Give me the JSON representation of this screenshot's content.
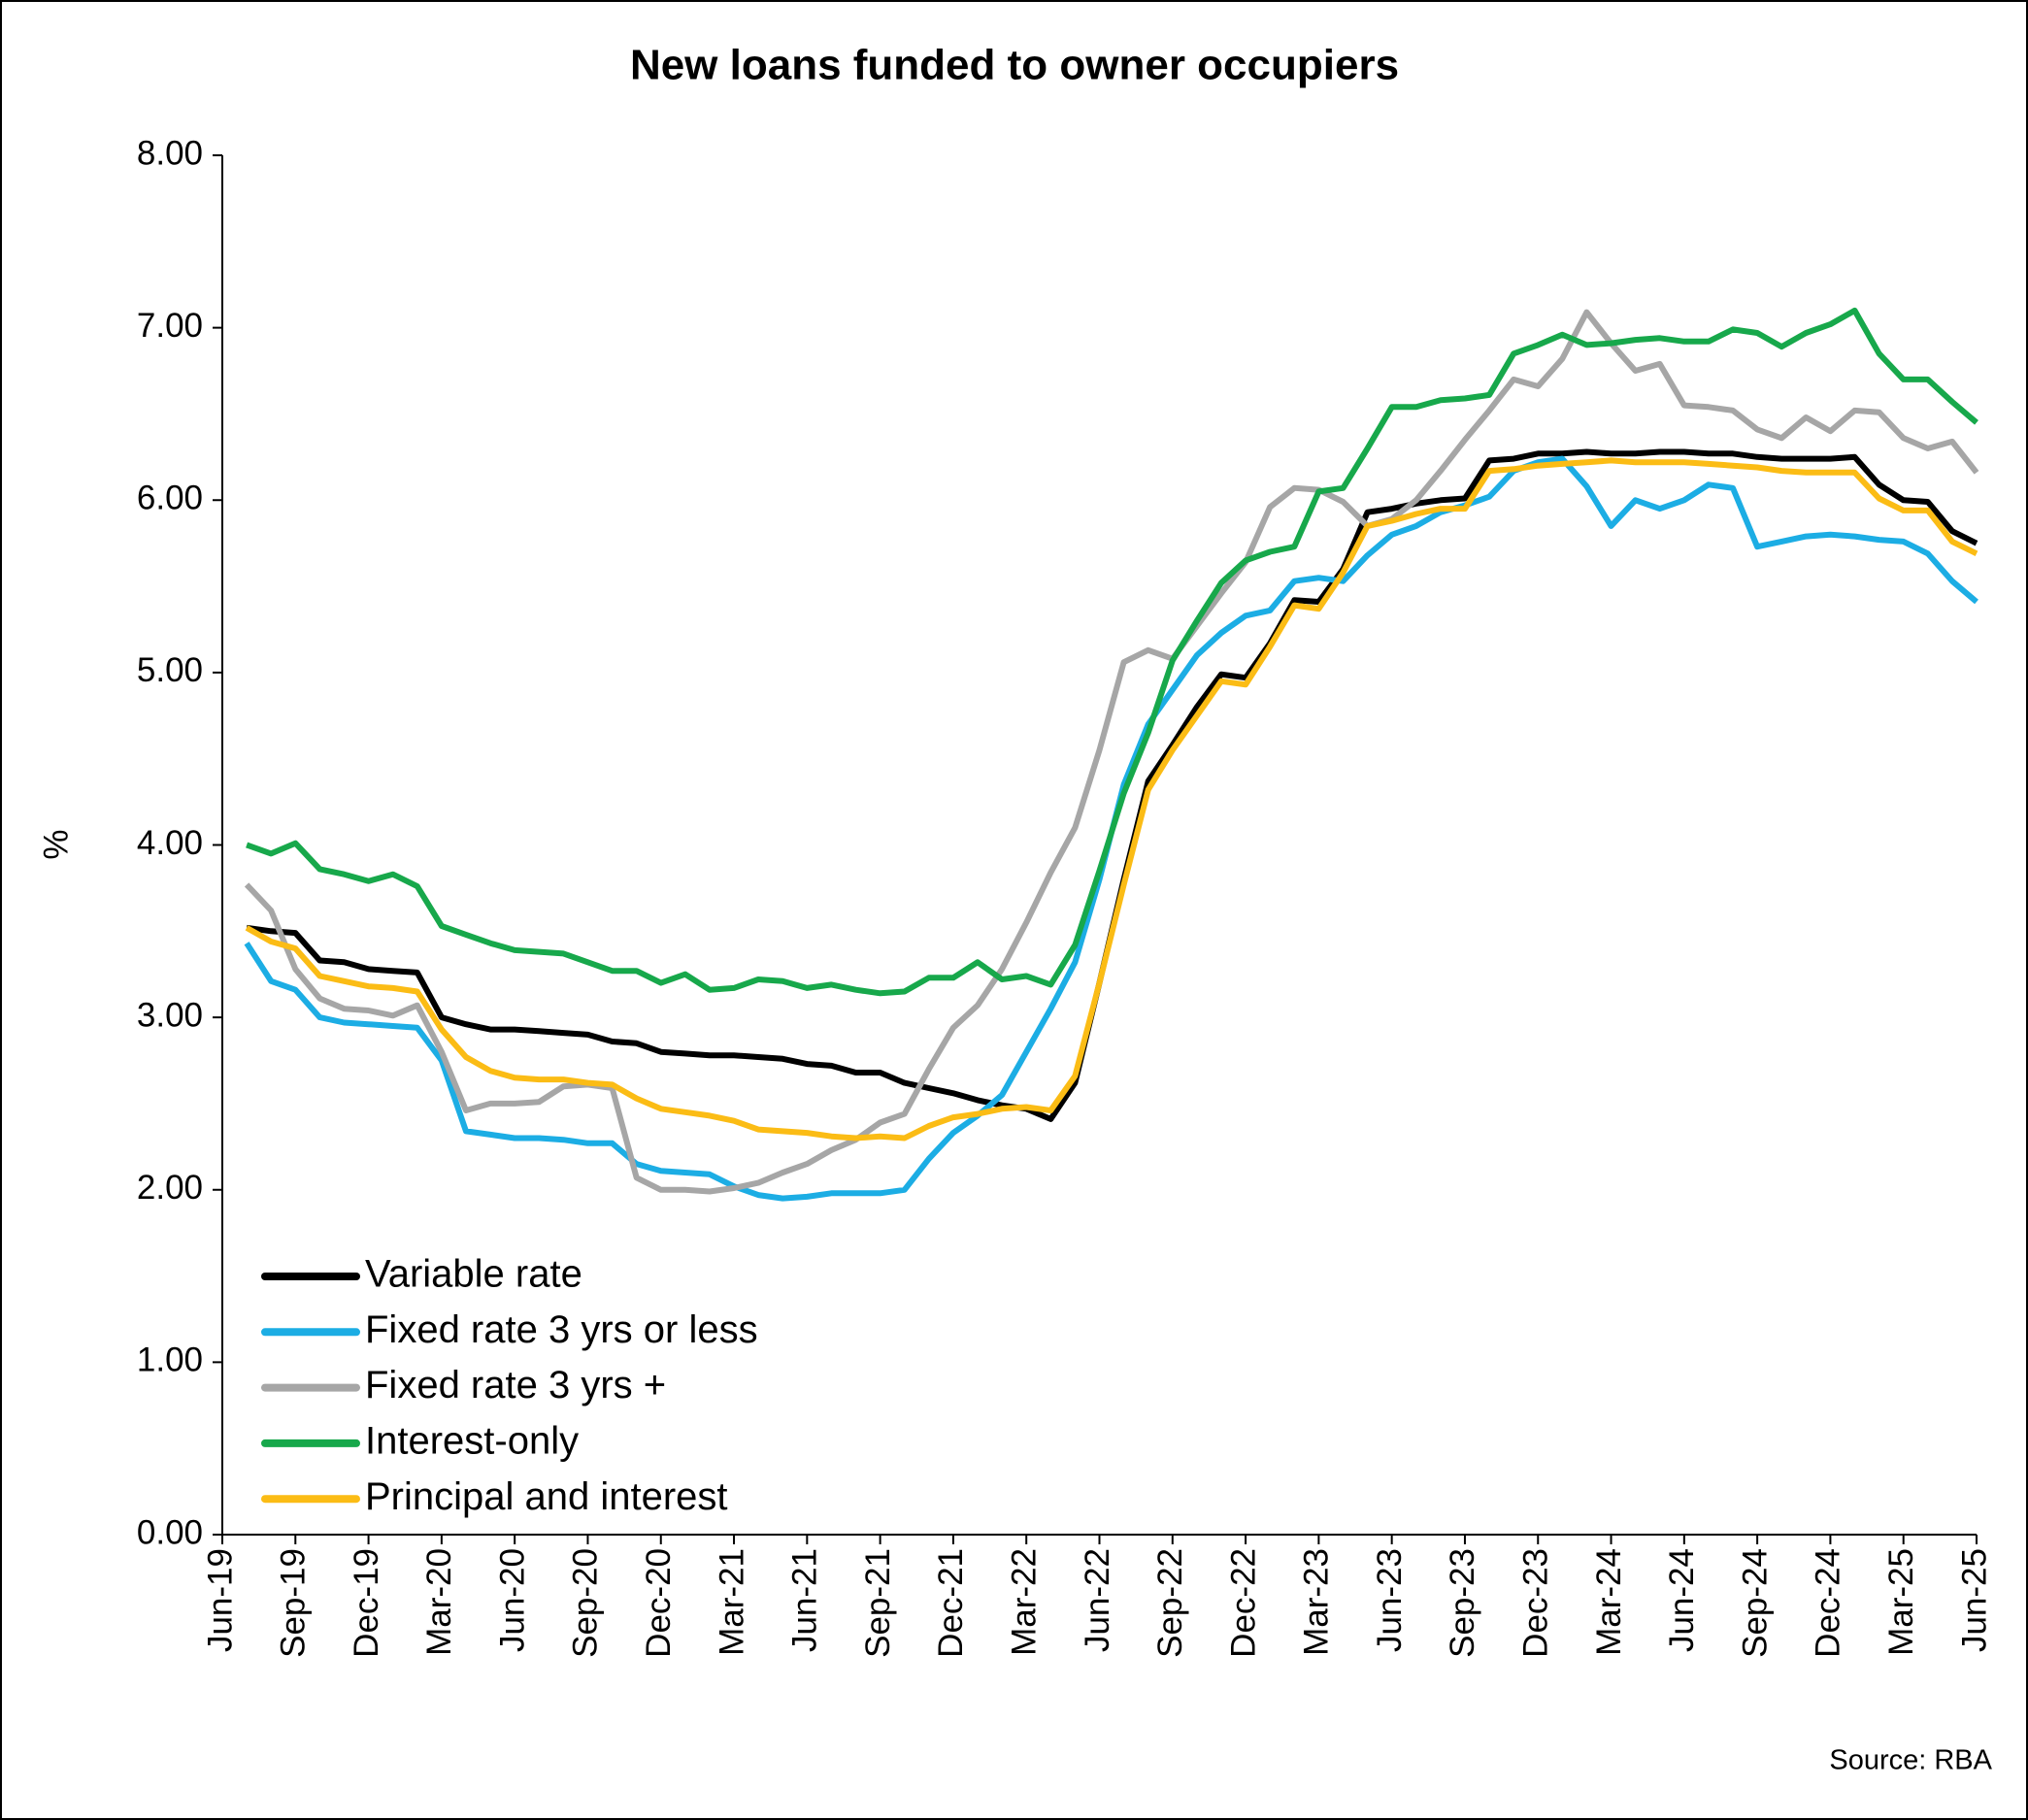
{
  "chart_data": {
    "type": "line",
    "title": "New loans funded to owner occupiers",
    "ylabel": "%",
    "source": "Source: RBA",
    "categories": [
      "Jun-19",
      null,
      null,
      "Sep-19",
      null,
      null,
      "Dec-19",
      null,
      null,
      "Mar-20",
      null,
      null,
      "Jun-20",
      null,
      null,
      "Sep-20",
      null,
      null,
      "Dec-20",
      null,
      null,
      "Mar-21",
      null,
      null,
      "Jun-21",
      null,
      null,
      "Sep-21",
      null,
      null,
      "Dec-21",
      null,
      null,
      "Mar-22",
      null,
      null,
      "Jun-22",
      null,
      null,
      "Sep-22",
      null,
      null,
      "Dec-22",
      null,
      null,
      "Mar-23",
      null,
      null,
      "Jun-23",
      null,
      null,
      "Sep-23",
      null,
      null,
      "Dec-23",
      null,
      null,
      "Mar-24",
      null,
      null,
      "Jun-24",
      null,
      null,
      "Sep-24",
      null,
      null,
      "Dec-24",
      null,
      null,
      "Mar-25",
      null,
      null,
      "Jun-25"
    ],
    "series": [
      {
        "name": "Variable rate",
        "color": "#000000",
        "values": [
          null,
          3.52,
          3.5,
          3.49,
          3.33,
          3.32,
          3.28,
          3.27,
          3.26,
          3.0,
          2.96,
          2.93,
          2.93,
          2.92,
          2.91,
          2.9,
          2.86,
          2.85,
          2.8,
          2.79,
          2.78,
          2.78,
          2.77,
          2.76,
          2.73,
          2.72,
          2.68,
          2.68,
          2.62,
          2.59,
          2.56,
          2.52,
          2.49,
          2.47,
          2.41,
          2.62,
          3.2,
          3.8,
          4.37,
          4.58,
          4.8,
          4.99,
          4.97,
          5.17,
          5.42,
          5.41,
          5.6,
          5.93,
          5.95,
          5.98,
          6.0,
          6.01,
          6.23,
          6.24,
          6.27,
          6.27,
          6.28,
          6.27,
          6.27,
          6.28,
          6.28,
          6.27,
          6.27,
          6.25,
          6.24,
          6.24,
          6.24,
          6.25,
          6.09,
          6.0,
          5.99,
          5.82,
          5.75
        ]
      },
      {
        "name": "Fixed rate 3 yrs or less",
        "color": "#1cade4",
        "values": [
          null,
          3.43,
          3.21,
          3.16,
          3.0,
          2.97,
          2.96,
          2.95,
          2.94,
          2.75,
          2.34,
          2.32,
          2.3,
          2.3,
          2.29,
          2.27,
          2.27,
          2.15,
          2.11,
          2.1,
          2.09,
          2.02,
          1.97,
          1.95,
          1.96,
          1.98,
          1.98,
          1.98,
          2.0,
          2.18,
          2.33,
          2.43,
          2.55,
          2.8,
          3.05,
          3.32,
          3.8,
          4.35,
          4.7,
          4.9,
          5.1,
          5.23,
          5.33,
          5.36,
          5.53,
          5.55,
          5.53,
          5.68,
          5.8,
          5.85,
          5.93,
          5.97,
          6.02,
          6.17,
          6.22,
          6.24,
          6.08,
          5.85,
          6.0,
          5.95,
          6.0,
          6.09,
          6.07,
          5.73,
          5.76,
          5.79,
          5.8,
          5.79,
          5.77,
          5.76,
          5.69,
          5.53,
          5.41
        ]
      },
      {
        "name": "Fixed rate 3 yrs +",
        "color": "#a6a6a6",
        "values": [
          null,
          3.77,
          3.62,
          3.28,
          3.11,
          3.05,
          3.04,
          3.01,
          3.07,
          2.8,
          2.46,
          2.5,
          2.5,
          2.51,
          2.6,
          2.61,
          2.59,
          2.07,
          2.0,
          2.0,
          1.99,
          2.01,
          2.04,
          2.1,
          2.15,
          2.23,
          2.29,
          2.39,
          2.44,
          2.7,
          2.94,
          3.07,
          3.28,
          3.55,
          3.84,
          4.1,
          4.55,
          5.06,
          5.13,
          5.08,
          5.27,
          5.46,
          5.64,
          5.96,
          6.07,
          6.06,
          5.99,
          5.85,
          5.89,
          6.0,
          6.17,
          6.35,
          6.52,
          6.7,
          6.66,
          6.82,
          7.09,
          6.91,
          6.75,
          6.79,
          6.55,
          6.54,
          6.52,
          6.41,
          6.36,
          6.48,
          6.4,
          6.52,
          6.51,
          6.36,
          6.3,
          6.34,
          6.16
        ]
      },
      {
        "name": "Interest-only",
        "color": "#17a84b",
        "values": [
          null,
          4.0,
          3.95,
          4.01,
          3.86,
          3.83,
          3.79,
          3.83,
          3.76,
          3.53,
          3.48,
          3.43,
          3.39,
          3.38,
          3.37,
          3.32,
          3.27,
          3.27,
          3.2,
          3.25,
          3.16,
          3.17,
          3.22,
          3.21,
          3.17,
          3.19,
          3.16,
          3.14,
          3.15,
          3.23,
          3.23,
          3.32,
          3.22,
          3.24,
          3.19,
          3.42,
          3.85,
          4.3,
          4.65,
          5.07,
          5.3,
          5.52,
          5.65,
          5.7,
          5.73,
          6.05,
          6.07,
          6.3,
          6.54,
          6.54,
          6.58,
          6.59,
          6.61,
          6.85,
          6.9,
          6.96,
          6.9,
          6.91,
          6.93,
          6.94,
          6.92,
          6.92,
          6.99,
          6.97,
          6.89,
          6.97,
          7.02,
          7.1,
          6.85,
          6.7,
          6.7,
          6.57,
          6.45
        ]
      },
      {
        "name": "Principal and interest",
        "color": "#fbbc15",
        "values": [
          null,
          3.52,
          3.44,
          3.4,
          3.24,
          3.21,
          3.18,
          3.17,
          3.15,
          2.93,
          2.77,
          2.69,
          2.65,
          2.64,
          2.64,
          2.62,
          2.61,
          2.53,
          2.47,
          2.45,
          2.43,
          2.4,
          2.35,
          2.34,
          2.33,
          2.31,
          2.3,
          2.31,
          2.3,
          2.37,
          2.42,
          2.44,
          2.47,
          2.48,
          2.46,
          2.66,
          3.2,
          3.77,
          4.32,
          4.55,
          4.75,
          4.95,
          4.93,
          5.15,
          5.39,
          5.37,
          5.58,
          5.85,
          5.88,
          5.92,
          5.95,
          5.95,
          6.17,
          6.18,
          6.2,
          6.21,
          6.22,
          6.23,
          6.22,
          6.22,
          6.22,
          6.21,
          6.2,
          6.19,
          6.17,
          6.16,
          6.16,
          6.16,
          6.01,
          5.94,
          5.94,
          5.76,
          5.69
        ]
      }
    ],
    "ylim": [
      0,
      8
    ],
    "yticks": [
      {
        "value": 0,
        "label": "0.00"
      },
      {
        "value": 1,
        "label": "1.00"
      },
      {
        "value": 2,
        "label": "2.00"
      },
      {
        "value": 3,
        "label": "3.00"
      },
      {
        "value": 4,
        "label": "4.00"
      },
      {
        "value": 5,
        "label": "5.00"
      },
      {
        "value": 6,
        "label": "6.00"
      },
      {
        "value": 7,
        "label": "7.00"
      },
      {
        "value": 8,
        "label": "8.00"
      }
    ],
    "grid": false,
    "legend": "lower left"
  }
}
